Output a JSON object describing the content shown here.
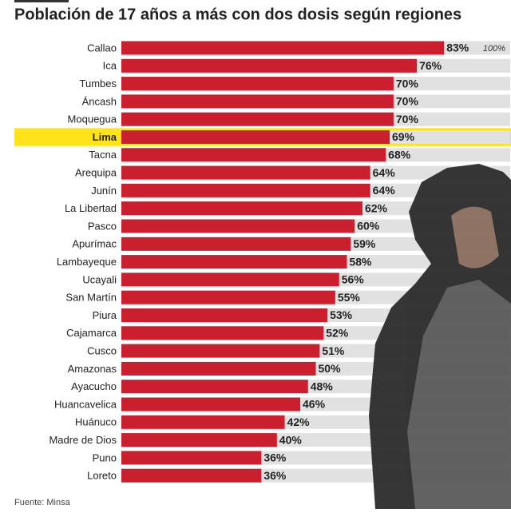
{
  "chart_data": {
    "type": "bar",
    "orientation": "horizontal",
    "title": "Población de 17 años a más con dos dosis según regiones",
    "source": "Fuente: Minsa",
    "categories": [
      "Callao",
      "Ica",
      "Tumbes",
      "Áncash",
      "Moquegua",
      "Lima",
      "Tacna",
      "Arequipa",
      "Junín",
      "La Libertad",
      "Pasco",
      "Apurímac",
      "Lambayeque",
      "Ucayali",
      "San Martín",
      "Piura",
      "Cajamarca",
      "Cusco",
      "Amazonas",
      "Ayacucho",
      "Huancavelica",
      "Huánuco",
      "Madre de Dios",
      "Puno",
      "Loreto"
    ],
    "values": [
      83,
      76,
      70,
      70,
      70,
      69,
      68,
      64,
      64,
      62,
      60,
      59,
      58,
      56,
      55,
      53,
      52,
      51,
      50,
      48,
      46,
      42,
      40,
      36,
      36
    ],
    "value_labels": [
      "83%",
      "76%",
      "70%",
      "70%",
      "70%",
      "69%",
      "68%",
      "64%",
      "64%",
      "62%",
      "60%",
      "59%",
      "58%",
      "56%",
      "55%",
      "53%",
      "52%",
      "51%",
      "50%",
      "48%",
      "46%",
      "42%",
      "40%",
      "36%",
      "36%"
    ],
    "color": "#c91f2e",
    "track_color": "#e1e1e1",
    "highlight": "Lima",
    "highlight_color": "#ffe31a",
    "xlim": [
      0,
      100
    ],
    "xticks": [
      {
        "value": 100,
        "label": "100%"
      }
    ]
  }
}
